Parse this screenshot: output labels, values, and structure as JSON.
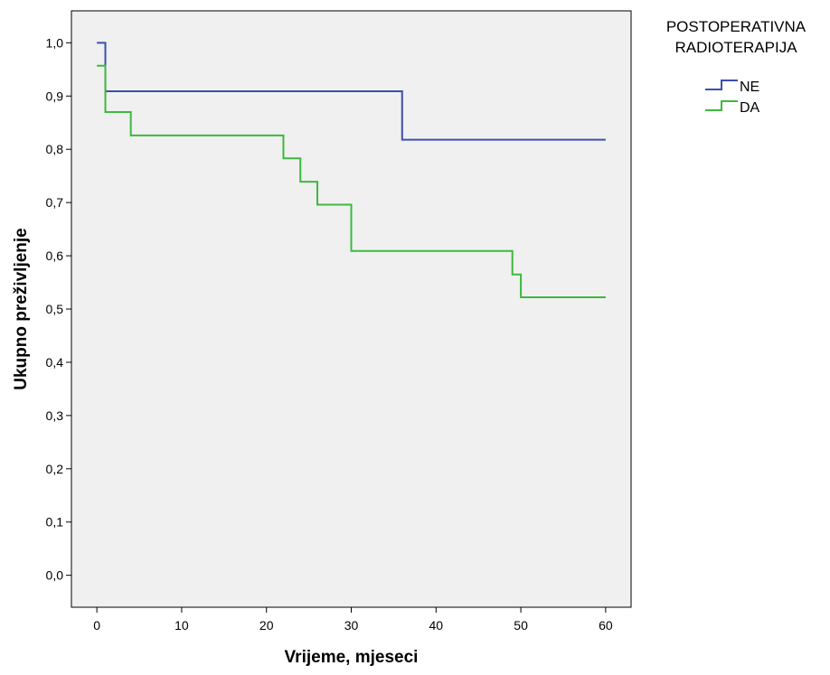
{
  "chart_data": {
    "type": "line",
    "step": true,
    "title": "",
    "xlabel": "Vrijeme, mjeseci",
    "ylabel": "Ukupno preživljenje",
    "xlim": [
      -3,
      63
    ],
    "ylim": [
      -0.06,
      1.06
    ],
    "x_ticks": [
      0,
      10,
      20,
      30,
      40,
      50,
      60
    ],
    "x_tick_labels": [
      "0",
      "10",
      "20",
      "30",
      "40",
      "50",
      "60"
    ],
    "y_ticks": [
      0.0,
      0.1,
      0.2,
      0.3,
      0.4,
      0.5,
      0.6,
      0.7,
      0.8,
      0.9,
      1.0
    ],
    "y_tick_labels": [
      "0,0",
      "0,1",
      "0,2",
      "0,3",
      "0,4",
      "0,5",
      "0,6",
      "0,7",
      "0,8",
      "0,9",
      "1,0"
    ],
    "grid": false,
    "plot_background": "#f0f0f0",
    "legend": {
      "title_lines": [
        "POSTOPERATIVNA",
        "RADIOTERAPIJA"
      ],
      "placement": "right"
    },
    "series": [
      {
        "name": "NE",
        "color": "#3c4fae",
        "points": [
          [
            0,
            1.0
          ],
          [
            1,
            0.909
          ],
          [
            36,
            0.818
          ],
          [
            60,
            0.818
          ]
        ]
      },
      {
        "name": "DA",
        "color": "#3cb93c",
        "points": [
          [
            0,
            0.957
          ],
          [
            1,
            0.87
          ],
          [
            4,
            0.826
          ],
          [
            22,
            0.783
          ],
          [
            24,
            0.739
          ],
          [
            26,
            0.696
          ],
          [
            30,
            0.609
          ],
          [
            49,
            0.565
          ],
          [
            50,
            0.522
          ],
          [
            60,
            0.522
          ]
        ]
      }
    ]
  }
}
